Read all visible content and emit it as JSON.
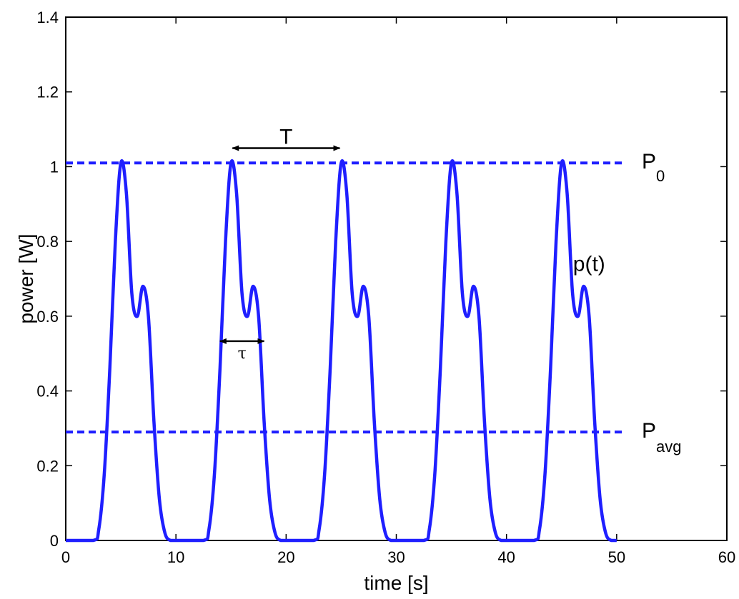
{
  "chart_data": {
    "type": "line",
    "xlabel": "time [s]",
    "ylabel": "power [W]",
    "xlim": [
      0,
      60
    ],
    "ylim": [
      0,
      1.4
    ],
    "x_ticks": [
      0,
      10,
      20,
      30,
      40,
      50,
      60
    ],
    "x_tick_labels": [
      "0",
      "10",
      "20",
      "30",
      "40",
      "50",
      "60"
    ],
    "y_ticks": [
      0,
      0.2,
      0.4,
      0.6,
      0.8,
      1.0,
      1.2,
      1.4
    ],
    "y_tick_labels": [
      "0",
      "0.2",
      "0.4",
      "0.6",
      "0.8",
      "1",
      "1.2",
      "1.4"
    ],
    "grid": false,
    "series": [
      {
        "label": "p(t)",
        "style": "solid",
        "color": "#1f1fff",
        "x": [
          0,
          2.5,
          3,
          3.5,
          4,
          4.5,
          5,
          5.5,
          6,
          6.5,
          7,
          7.5,
          8,
          8.5,
          9,
          9.5,
          10,
          12.5,
          13,
          13.5,
          14,
          14.5,
          15,
          15.5,
          16,
          16.5,
          17,
          17.5,
          18,
          18.5,
          19,
          19.5,
          20,
          22.5,
          23,
          23.5,
          24,
          24.5,
          25,
          25.5,
          26,
          26.5,
          27,
          27.5,
          28,
          28.5,
          29,
          29.5,
          30,
          32.5,
          33,
          33.5,
          34,
          34.5,
          35,
          35.5,
          36,
          36.5,
          37,
          37.5,
          38,
          38.5,
          39,
          39.5,
          40,
          42.5,
          43,
          43.5,
          44,
          44.5,
          45,
          45.5,
          46,
          46.5,
          47,
          47.5,
          48,
          48.5,
          49,
          49.5,
          50
        ],
        "y": [
          0,
          0,
          0.03,
          0.18,
          0.46,
          0.8,
          1.01,
          0.93,
          0.66,
          0.6,
          0.68,
          0.6,
          0.32,
          0.11,
          0.02,
          0,
          0,
          0,
          0.03,
          0.18,
          0.46,
          0.8,
          1.01,
          0.93,
          0.66,
          0.6,
          0.68,
          0.6,
          0.32,
          0.11,
          0.02,
          0,
          0,
          0,
          0.03,
          0.18,
          0.46,
          0.8,
          1.01,
          0.93,
          0.66,
          0.6,
          0.68,
          0.6,
          0.32,
          0.11,
          0.02,
          0,
          0,
          0,
          0.03,
          0.18,
          0.46,
          0.8,
          1.01,
          0.93,
          0.66,
          0.6,
          0.68,
          0.6,
          0.32,
          0.11,
          0.02,
          0,
          0,
          0,
          0.03,
          0.18,
          0.46,
          0.8,
          1.01,
          0.93,
          0.66,
          0.6,
          0.68,
          0.6,
          0.32,
          0.11,
          0.02,
          0,
          0
        ]
      },
      {
        "label": "P0",
        "style": "dashed",
        "color": "#1f1fff",
        "x": [
          0,
          50
        ],
        "y": [
          1.01,
          1.01
        ]
      },
      {
        "label": "Pavg",
        "style": "dashed",
        "color": "#1f1fff",
        "x": [
          0,
          50
        ],
        "y": [
          0.29,
          0.29
        ]
      }
    ],
    "annotations": {
      "P0": {
        "main": "P",
        "sub": "0",
        "x": 51.5,
        "y": 1.01
      },
      "Pavg": {
        "main": "P",
        "sub": "avg",
        "x": 51.5,
        "y": 0.29
      },
      "pt": {
        "text": "p(t)",
        "x": 47.5,
        "y": 0.74
      },
      "T": {
        "text": "T",
        "x_from": 15,
        "x_to": 25,
        "y": 1.04
      },
      "tau": {
        "text": "τ",
        "x_from": 14,
        "x_to": 18,
        "y": 0.535
      }
    }
  }
}
